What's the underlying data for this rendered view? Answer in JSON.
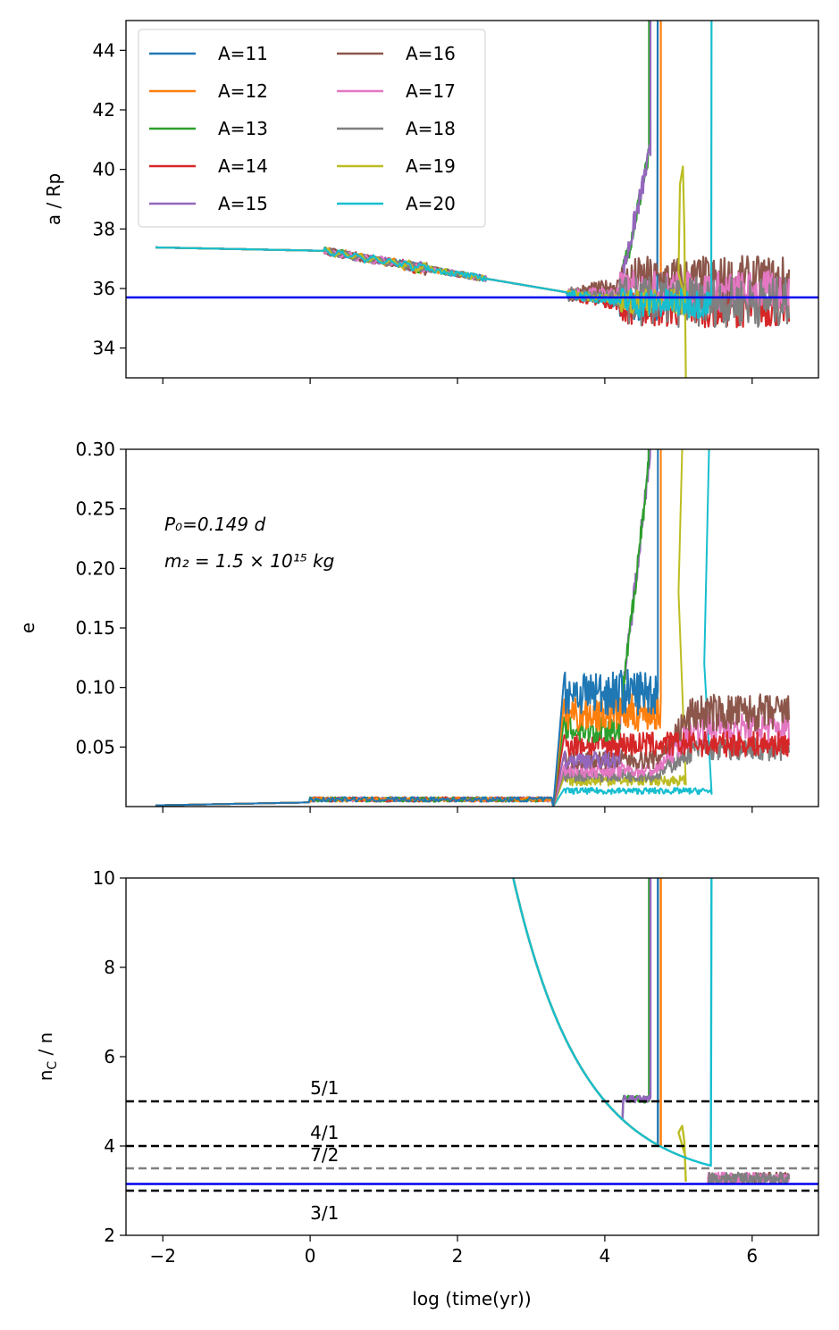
{
  "figure": {
    "xlabel": "log (time(yr))",
    "annotation_line1": "P₀=0.149 d",
    "annotation_line2": "m₂ = 1.5 × 10¹⁵ kg"
  },
  "legend": [
    {
      "label": "A=11",
      "color": "#1f77b4"
    },
    {
      "label": "A=12",
      "color": "#ff7f0e"
    },
    {
      "label": "A=13",
      "color": "#2ca02c"
    },
    {
      "label": "A=14",
      "color": "#d62728"
    },
    {
      "label": "A=15",
      "color": "#9467bd"
    },
    {
      "label": "A=16",
      "color": "#8c564b"
    },
    {
      "label": "A=17",
      "color": "#e377c2"
    },
    {
      "label": "A=18",
      "color": "#7f7f7f"
    },
    {
      "label": "A=19",
      "color": "#bcbd22"
    },
    {
      "label": "A=20",
      "color": "#17becf"
    }
  ],
  "chart_data": [
    {
      "type": "line",
      "panel": "top",
      "ylabel": "a / Rp",
      "xlim": [
        -2.5,
        6.9
      ],
      "ylim": [
        33,
        45
      ],
      "xticks": [
        -2,
        0,
        2,
        4,
        6
      ],
      "yticks": [
        34,
        36,
        38,
        40,
        42,
        44
      ],
      "ytick_labels": [
        "34",
        "36",
        "38",
        "40",
        "42",
        "44"
      ],
      "show_xtick_labels": false,
      "hline": {
        "y": 35.7,
        "color": "#0000ee"
      },
      "series": [
        {
          "name": "A=11",
          "escape": 4.72,
          "late_low": 34.9,
          "late_high": 35.6
        },
        {
          "name": "A=12",
          "escape": 4.76,
          "late_low": 35.2,
          "late_high": 35.8
        },
        {
          "name": "A=13",
          "escape": 4.6,
          "late_low": 35.0,
          "late_high": 36.2
        },
        {
          "name": "A=14",
          "escape": null,
          "late_low": 34.7,
          "late_high": 35.9
        },
        {
          "name": "A=15",
          "escape": 4.62,
          "late_low": 35.6,
          "late_high": 36.0
        },
        {
          "name": "A=16",
          "escape": null,
          "late_low": 35.4,
          "late_high": 37.1
        },
        {
          "name": "A=17",
          "escape": null,
          "late_low": 35.2,
          "late_high": 36.6
        },
        {
          "name": "A=18",
          "escape": null,
          "late_low": 34.7,
          "late_high": 36.4
        },
        {
          "name": "A=19",
          "escape": 5.1,
          "late_low": 35.1,
          "late_high": 36.0
        },
        {
          "name": "A=20",
          "escape": 5.45,
          "late_low": 35.0,
          "late_high": 36.0
        }
      ]
    },
    {
      "type": "line",
      "panel": "middle",
      "ylabel": "e",
      "xlim": [
        -2.5,
        6.9
      ],
      "ylim": [
        0.0,
        0.3
      ],
      "xticks": [
        -2,
        0,
        2,
        4,
        6
      ],
      "yticks": [
        0.05,
        0.1,
        0.15,
        0.2,
        0.25,
        0.3
      ],
      "ytick_labels": [
        "0.05",
        "0.10",
        "0.15",
        "0.20",
        "0.25",
        "0.30"
      ],
      "show_xtick_labels": false,
      "series": [
        {
          "name": "A=11",
          "plateau": 0.11,
          "escape": 4.72
        },
        {
          "name": "A=12",
          "plateau": 0.09,
          "escape": 4.76
        },
        {
          "name": "A=13",
          "plateau": 0.075,
          "escape": 4.6
        },
        {
          "name": "A=14",
          "plateau": 0.06,
          "escape": null
        },
        {
          "name": "A=15",
          "plateau": 0.045,
          "escape": 4.62
        },
        {
          "name": "A=16",
          "plateau": 0.045,
          "escape": null,
          "late": 0.09
        },
        {
          "name": "A=17",
          "plateau": 0.035,
          "escape": null,
          "late": 0.075
        },
        {
          "name": "A=18",
          "plateau": 0.03,
          "escape": null,
          "late": 0.055
        },
        {
          "name": "A=19",
          "plateau": 0.025,
          "escape": 5.1
        },
        {
          "name": "A=20",
          "plateau": 0.015,
          "escape": 5.45
        }
      ]
    },
    {
      "type": "line",
      "panel": "bottom",
      "ylabel": "n_C / n",
      "xlabel": "log (time(yr))",
      "xlim": [
        -2.5,
        6.9
      ],
      "ylim": [
        2,
        10
      ],
      "xticks": [
        -2,
        0,
        2,
        4,
        6
      ],
      "xtick_labels": [
        "−2",
        "0",
        "2",
        "4",
        "6"
      ],
      "yticks": [
        2,
        4,
        6,
        8,
        10
      ],
      "ytick_labels": [
        "2",
        "4",
        "6",
        "8",
        "10"
      ],
      "show_xtick_labels": true,
      "hline": {
        "y": 3.15,
        "color": "#0000ee"
      },
      "resonances": [
        {
          "label": "5/1",
          "y": 5.0,
          "color": "#000000"
        },
        {
          "label": "4/1",
          "y": 4.0,
          "color": "#000000"
        },
        {
          "label": "7/2",
          "y": 3.5,
          "color": "#808080"
        },
        {
          "label": "3/1",
          "y": 3.0,
          "color": "#000000"
        }
      ],
      "series": [
        {
          "name": "A=13",
          "escape": 4.6
        },
        {
          "name": "A=15",
          "escape": 4.62
        },
        {
          "name": "A=11",
          "escape": 4.72
        },
        {
          "name": "A=12",
          "escape": 4.76
        },
        {
          "name": "A=19",
          "escape": 5.1
        },
        {
          "name": "A=20",
          "escape": 5.45
        }
      ]
    }
  ]
}
